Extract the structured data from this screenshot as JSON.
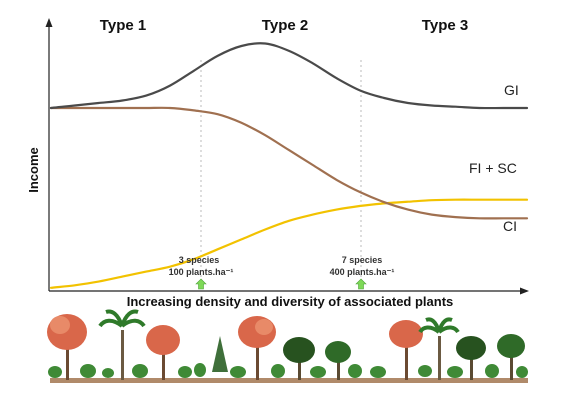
{
  "chart_data": {
    "type": "line",
    "title": "",
    "xlabel": "Increasing density and diversity of associated plants",
    "ylabel": "Income",
    "regions": [
      "Type 1",
      "Type 2",
      "Type 3"
    ],
    "x": [
      0,
      5,
      10,
      15,
      20,
      25,
      30,
      35,
      40,
      45,
      50,
      55,
      60,
      65,
      70,
      75,
      80,
      85,
      90,
      95,
      100
    ],
    "xlim": [
      0,
      100
    ],
    "ylim": [
      0,
      100
    ],
    "grid": false,
    "legend": "none",
    "series": [
      {
        "name": "GI",
        "color": "#4a4a4a",
        "values": [
          73,
          74,
          75,
          76,
          78,
          82,
          88,
          94,
          98,
          99,
          96,
          91,
          85,
          80,
          77,
          75,
          74,
          73.5,
          73,
          73,
          73
        ]
      },
      {
        "name": "CI",
        "color": "#a07050",
        "values": [
          73,
          73,
          73,
          73,
          73,
          73,
          72,
          70.5,
          67,
          62,
          56,
          50,
          44,
          39,
          35,
          32,
          30,
          29,
          28.5,
          28.5,
          28.5
        ]
      },
      {
        "name": "FI + SC",
        "color": "#f2c200",
        "values": [
          0.5,
          1.5,
          3,
          5,
          7,
          9,
          12,
          16,
          20,
          24,
          27.5,
          30,
          32,
          33.5,
          34.5,
          35.2,
          35.8,
          36,
          36,
          36,
          36
        ]
      }
    ],
    "annotations": [
      {
        "x": 27,
        "lines": [
          "3 species",
          "100 plants.ha⁻¹"
        ]
      },
      {
        "x": 59,
        "lines": [
          "7 species",
          "400 plants.ha⁻¹"
        ]
      }
    ]
  },
  "colors": {
    "axis": "#222222",
    "divider": "#bbbbbb",
    "arrow": "#7ed957",
    "ground": "#b08a6a"
  },
  "illustration": {
    "icon": "tree-row-illustration"
  }
}
